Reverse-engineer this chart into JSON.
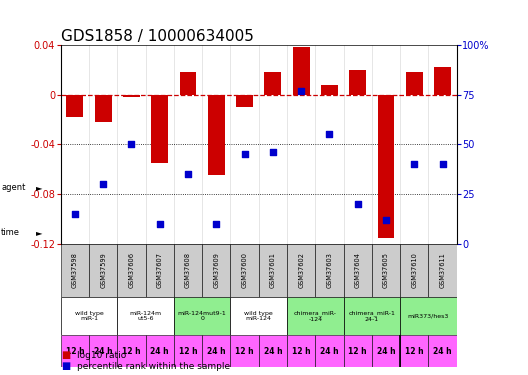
{
  "title": "GDS1858 / 10000634005",
  "samples": [
    "GSM37598",
    "GSM37599",
    "GSM37606",
    "GSM37607",
    "GSM37608",
    "GSM37609",
    "GSM37600",
    "GSM37601",
    "GSM37602",
    "GSM37603",
    "GSM37604",
    "GSM37605",
    "GSM37610",
    "GSM37611"
  ],
  "log10_ratio": [
    -0.018,
    -0.022,
    -0.002,
    -0.055,
    0.018,
    -0.065,
    -0.01,
    0.018,
    0.038,
    0.008,
    0.02,
    -0.115,
    0.018,
    0.022
  ],
  "percentile": [
    15,
    30,
    50,
    10,
    35,
    10,
    45,
    46,
    77,
    55,
    20,
    12,
    40,
    40
  ],
  "ylim_left": [
    -0.12,
    0.04
  ],
  "ylim_right": [
    0,
    100
  ],
  "yticks_left": [
    0.04,
    0,
    -0.04,
    -0.08,
    -0.12
  ],
  "yticks_right": [
    100,
    75,
    50,
    25,
    0
  ],
  "agent_groups": [
    {
      "label": "wild type\nmiR-1",
      "cols": [
        0,
        1
      ],
      "color": "#ffffff"
    },
    {
      "label": "miR-124m\nut5-6",
      "cols": [
        2,
        3
      ],
      "color": "#ffffff"
    },
    {
      "label": "miR-124mut9-1\n0",
      "cols": [
        4,
        5
      ],
      "color": "#90ee90"
    },
    {
      "label": "wild type\nmiR-124",
      "cols": [
        6,
        7
      ],
      "color": "#ffffff"
    },
    {
      "label": "chimera_miR-\n-124",
      "cols": [
        8,
        9
      ],
      "color": "#90ee90"
    },
    {
      "label": "chimera_miR-1\n24-1",
      "cols": [
        10,
        11
      ],
      "color": "#90ee90"
    },
    {
      "label": "miR373/hes3",
      "cols": [
        12,
        13
      ],
      "color": "#90ee90"
    }
  ],
  "time_labels": [
    "12 h",
    "24 h",
    "12 h",
    "24 h",
    "12 h",
    "24 h",
    "12 h",
    "24 h",
    "12 h",
    "24 h",
    "12 h",
    "24 h",
    "12 h",
    "24 h"
  ],
  "bar_color": "#cc0000",
  "dot_color": "#0000cc",
  "zero_line_color": "#cc0000",
  "sample_bg_color": "#cccccc",
  "time_bg_color": "#ff66ff",
  "title_fontsize": 11,
  "tick_fontsize": 7,
  "label_fontsize": 7
}
